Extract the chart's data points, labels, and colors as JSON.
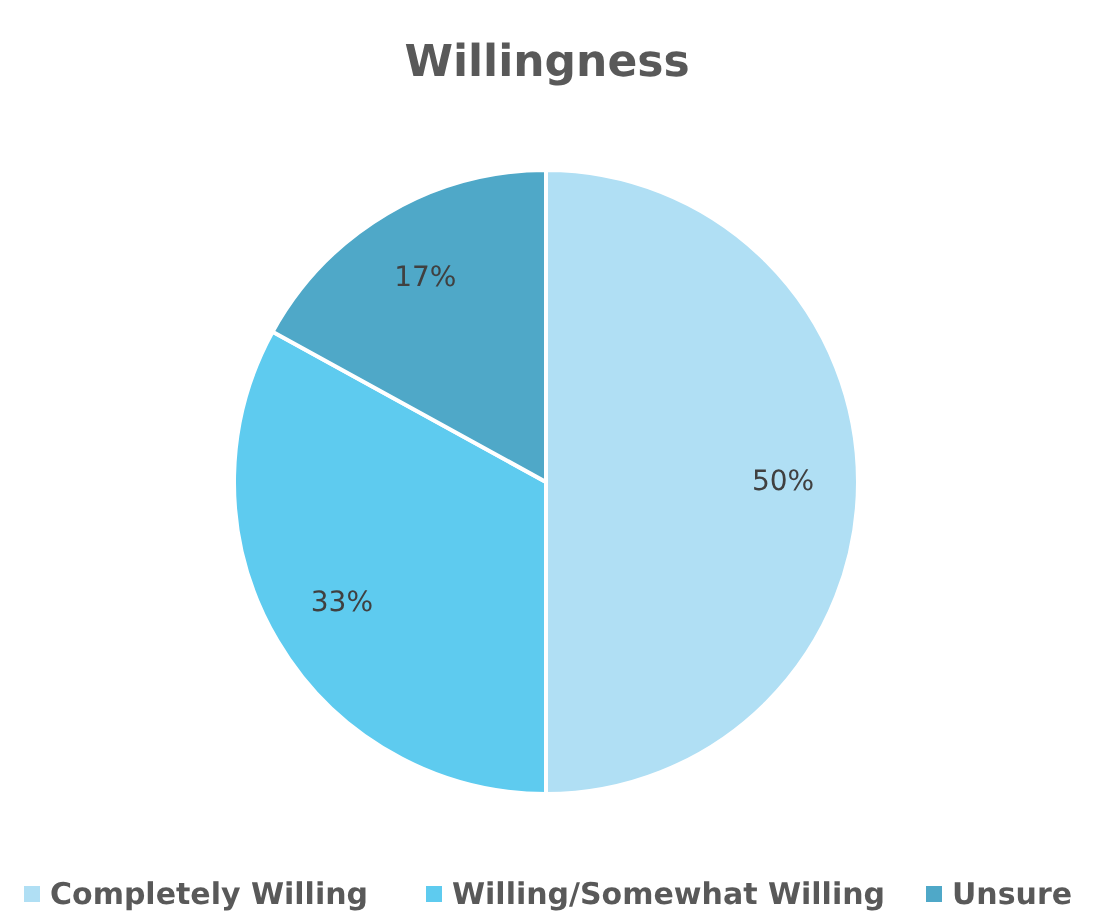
{
  "chart_data": {
    "type": "pie",
    "title": "Willingness",
    "categories": [
      "Completely Willing",
      "Willing/Somewhat Willing",
      "Unsure"
    ],
    "values": [
      50,
      33,
      17
    ],
    "value_labels": [
      "50%",
      "33%",
      "17%"
    ],
    "colors": [
      "#b0dff4",
      "#5ecbef",
      "#4fa8c8"
    ],
    "legend": "bottom"
  }
}
